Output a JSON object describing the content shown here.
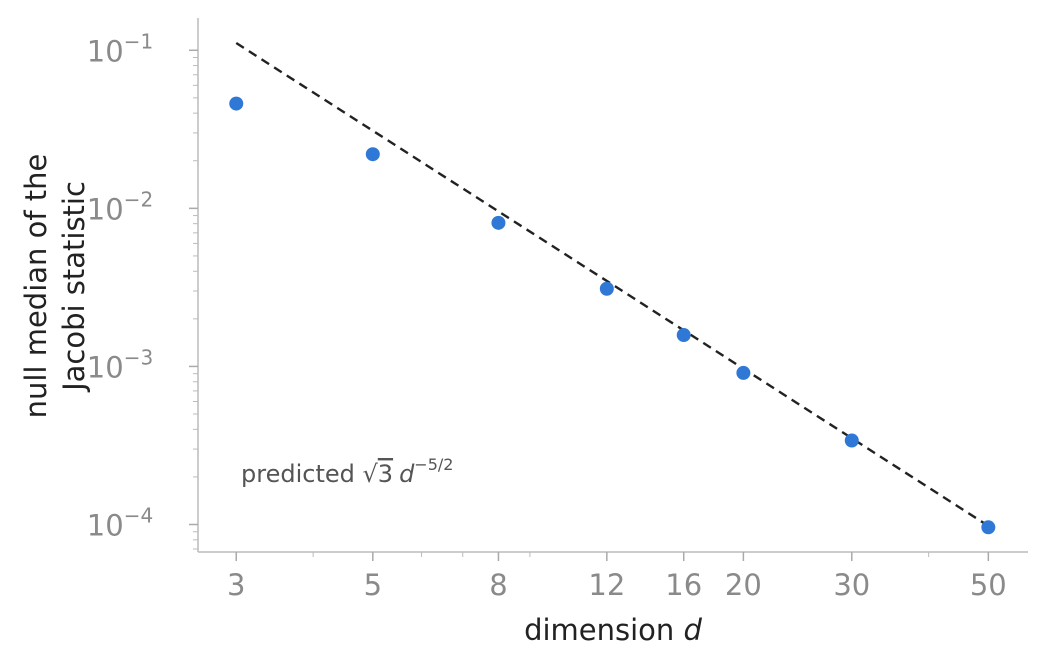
{
  "chart_data": {
    "type": "scatter",
    "xscale": "log",
    "yscale": "log",
    "xlabel": "dimension d",
    "ylabel_lines": [
      "null median of the",
      "Jacobi statistic"
    ],
    "x_ticks": [
      {
        "value": 3,
        "label": "3"
      },
      {
        "value": 5,
        "label": "5"
      },
      {
        "value": 8,
        "label": "8"
      },
      {
        "value": 12,
        "label": "12"
      },
      {
        "value": 16,
        "label": "16"
      },
      {
        "value": 20,
        "label": "20"
      },
      {
        "value": 30,
        "label": "30"
      },
      {
        "value": 50,
        "label": "50"
      }
    ],
    "y_ticks": [
      {
        "value": 0.1,
        "base": "10",
        "exp": "−1"
      },
      {
        "value": 0.01,
        "base": "10",
        "exp": "−2"
      },
      {
        "value": 0.001,
        "base": "10",
        "exp": "−3"
      },
      {
        "value": 0.0001,
        "base": "10",
        "exp": "−4"
      }
    ],
    "xlim": [
      2.6,
      58
    ],
    "ylim": [
      6.7e-05,
      0.16
    ],
    "series": [
      {
        "marker": "circle",
        "color": "#2f78d6",
        "x": [
          3,
          5,
          8,
          12,
          16,
          20,
          30,
          50
        ],
        "y": [
          0.046,
          0.022,
          0.0081,
          0.0031,
          0.00158,
          0.00091,
          0.00034,
          9.6e-05
        ]
      }
    ],
    "reference_line": {
      "style": "dashed",
      "color": "#222222",
      "coefficient": 1.7320508,
      "exponent": -2.5,
      "x_range": [
        3,
        50
      ]
    },
    "annotation": {
      "prefix": "predicted ",
      "radicand": "3",
      "variable": "d",
      "exponent": "−5/2"
    },
    "grid": false
  }
}
